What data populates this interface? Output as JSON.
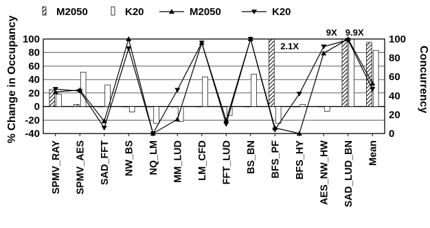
{
  "chart_data": {
    "type": "bar",
    "categories": [
      "SPMV_RAY",
      "SPMV_AES",
      "SAD_FFT",
      "NW_BS",
      "NQ_LM",
      "MM_LUD",
      "LM_CFD",
      "FFT_LUD",
      "BS_BN",
      "BFS_PF",
      "BFS_HY",
      "AES_NW_HW",
      "SAD_LUD_BN",
      "Mean"
    ],
    "ylabel": "% Change in Occupancy",
    "y2label": "Concurrency",
    "ylim": [
      -40,
      100
    ],
    "y2lim": [
      0,
      100
    ],
    "yticks": [
      -40,
      -20,
      0,
      20,
      40,
      60,
      80,
      100
    ],
    "y2ticks": [
      0,
      20,
      40,
      60,
      80,
      100
    ],
    "grid": true,
    "legend_position": "top",
    "bar_series": [
      {
        "name": "M2050",
        "axis": "left",
        "values": [
          25,
          3,
          0,
          0,
          0,
          0,
          0,
          0,
          0,
          100,
          0,
          0,
          100,
          95
        ]
      },
      {
        "name": "K20",
        "axis": "left",
        "values": [
          18,
          51,
          32,
          -8,
          -25,
          -22,
          44,
          -13,
          48,
          -25,
          3,
          -7,
          100,
          83
        ]
      }
    ],
    "line_series": [
      {
        "name": "M2050",
        "axis": "right",
        "marker": "triangle-up",
        "values": [
          44,
          46,
          13,
          100,
          0,
          15,
          96,
          14,
          100,
          6,
          0,
          85,
          100,
          53
        ]
      },
      {
        "name": "K20",
        "axis": "right",
        "marker": "triangle-down",
        "values": [
          47,
          45,
          6,
          90,
          0,
          46,
          96,
          10,
          100,
          4,
          42,
          92,
          99,
          47
        ]
      }
    ],
    "annotations": [
      {
        "text": "2.1X",
        "category": "BFS_PF"
      },
      {
        "text": "9X",
        "category": "SAD_LUD_BN"
      },
      {
        "text": "9.9X",
        "category": "SAD_LUD_BN"
      }
    ]
  },
  "legend": {
    "bar_m2050": "M2050",
    "bar_k20": "K20",
    "line_m2050": "M2050",
    "line_k20": "K20"
  }
}
